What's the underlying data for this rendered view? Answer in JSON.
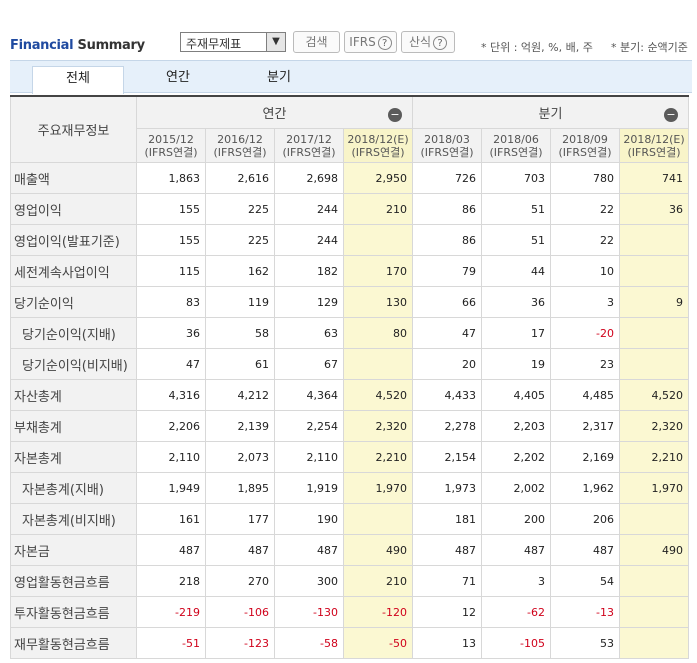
{
  "title_part1": "Financial",
  "title_part2": "Summary",
  "select": {
    "value": "주재무제표",
    "arrow": "▼"
  },
  "buttons": {
    "search": "검색",
    "ifrs": "IFRS",
    "calc": "산식",
    "help": "?"
  },
  "notes": {
    "unit": "* 단위 : 억원, %, 배, 주",
    "basis": "* 분기: 순액기준"
  },
  "tabs": [
    "전체",
    "연간",
    "분기"
  ],
  "table": {
    "corner": "주요재무정보",
    "groups": {
      "annual": "연간",
      "quarter": "분기",
      "collapse": "−"
    },
    "periods": [
      {
        "p": "2015/12",
        "s": "(IFRS연결)",
        "est": false
      },
      {
        "p": "2016/12",
        "s": "(IFRS연결)",
        "est": false
      },
      {
        "p": "2017/12",
        "s": "(IFRS연결)",
        "est": false
      },
      {
        "p": "2018/12(E)",
        "s": "(IFRS연결)",
        "est": true
      },
      {
        "p": "2018/03",
        "s": "(IFRS연결)",
        "est": false
      },
      {
        "p": "2018/06",
        "s": "(IFRS연결)",
        "est": false
      },
      {
        "p": "2018/09",
        "s": "(IFRS연결)",
        "est": false
      },
      {
        "p": "2018/12(E)",
        "s": "(IFRS연결)",
        "est": true
      }
    ],
    "rows": [
      {
        "label": "매출액",
        "sub": false,
        "v": [
          "1,863",
          "2,616",
          "2,698",
          "2,950",
          "726",
          "703",
          "780",
          "741"
        ]
      },
      {
        "label": "영업이익",
        "sub": false,
        "v": [
          "155",
          "225",
          "244",
          "210",
          "86",
          "51",
          "22",
          "36"
        ]
      },
      {
        "label": "영업이익(발표기준)",
        "sub": false,
        "v": [
          "155",
          "225",
          "244",
          "",
          "86",
          "51",
          "22",
          ""
        ]
      },
      {
        "label": "세전계속사업이익",
        "sub": false,
        "v": [
          "115",
          "162",
          "182",
          "170",
          "79",
          "44",
          "10",
          ""
        ]
      },
      {
        "label": "당기순이익",
        "sub": false,
        "v": [
          "83",
          "119",
          "129",
          "130",
          "66",
          "36",
          "3",
          "9"
        ]
      },
      {
        "label": "당기순이익(지배)",
        "sub": true,
        "v": [
          "36",
          "58",
          "63",
          "80",
          "47",
          "17",
          "-20",
          ""
        ]
      },
      {
        "label": "당기순이익(비지배)",
        "sub": true,
        "v": [
          "47",
          "61",
          "67",
          "",
          "20",
          "19",
          "23",
          ""
        ]
      },
      {
        "label": "자산총계",
        "sub": false,
        "v": [
          "4,316",
          "4,212",
          "4,364",
          "4,520",
          "4,433",
          "4,405",
          "4,485",
          "4,520"
        ]
      },
      {
        "label": "부채총계",
        "sub": false,
        "v": [
          "2,206",
          "2,139",
          "2,254",
          "2,320",
          "2,278",
          "2,203",
          "2,317",
          "2,320"
        ]
      },
      {
        "label": "자본총계",
        "sub": false,
        "v": [
          "2,110",
          "2,073",
          "2,110",
          "2,210",
          "2,154",
          "2,202",
          "2,169",
          "2,210"
        ]
      },
      {
        "label": "자본총계(지배)",
        "sub": true,
        "v": [
          "1,949",
          "1,895",
          "1,919",
          "1,970",
          "1,973",
          "2,002",
          "1,962",
          "1,970"
        ]
      },
      {
        "label": "자본총계(비지배)",
        "sub": true,
        "v": [
          "161",
          "177",
          "190",
          "",
          "181",
          "200",
          "206",
          ""
        ]
      },
      {
        "label": "자본금",
        "sub": false,
        "v": [
          "487",
          "487",
          "487",
          "490",
          "487",
          "487",
          "487",
          "490"
        ]
      },
      {
        "label": "영업활동현금흐름",
        "sub": false,
        "v": [
          "218",
          "270",
          "300",
          "210",
          "71",
          "3",
          "54",
          ""
        ]
      },
      {
        "label": "투자활동현금흐름",
        "sub": false,
        "v": [
          "-219",
          "-106",
          "-130",
          "-120",
          "12",
          "-62",
          "-13",
          ""
        ]
      },
      {
        "label": "재무활동현금흐름",
        "sub": false,
        "v": [
          "-51",
          "-123",
          "-58",
          "-50",
          "13",
          "-105",
          "53",
          ""
        ]
      }
    ]
  }
}
